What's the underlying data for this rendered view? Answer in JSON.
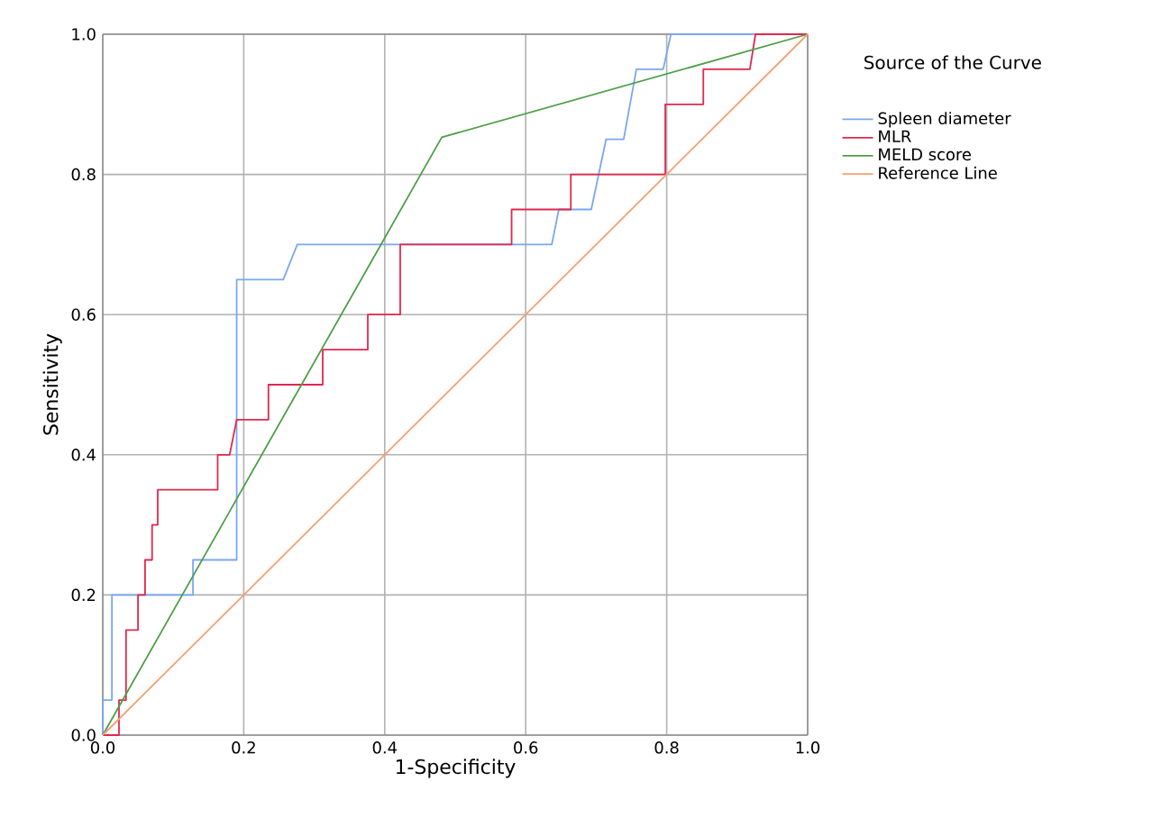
{
  "chart_data": {
    "type": "line",
    "xlabel": "1-Specificity",
    "ylabel": "Sensitivity",
    "legend_title": "Source of the Curve",
    "xlim": [
      0,
      1
    ],
    "ylim": [
      0,
      1
    ],
    "xticks": [
      {
        "value": 0,
        "label": "0.0"
      },
      {
        "value": 0.2,
        "label": "0.2"
      },
      {
        "value": 0.4,
        "label": "0.4"
      },
      {
        "value": 0.6,
        "label": "0.6"
      },
      {
        "value": 0.8,
        "label": "0.8"
      },
      {
        "value": 1,
        "label": "1.0"
      }
    ],
    "yticks": [
      {
        "value": 0,
        "label": "0.0"
      },
      {
        "value": 0.2,
        "label": "0.2"
      },
      {
        "value": 0.4,
        "label": "0.4"
      },
      {
        "value": 0.6,
        "label": "0.6"
      },
      {
        "value": 0.8,
        "label": "0.8"
      },
      {
        "value": 1,
        "label": "1.0"
      }
    ],
    "grid": true,
    "legend": "top right",
    "marker": "none",
    "series": [
      {
        "name": "Spleen diameter",
        "color": "#7aa7ee",
        "x": [
          0,
          0,
          0.013,
          0.013,
          0.128,
          0.128,
          0.19,
          0.19,
          0.256,
          0.276,
          0.637,
          0.647,
          0.693,
          0.714,
          0.739,
          0.757,
          0.795,
          0.806,
          1
        ],
        "values": [
          0,
          0.05,
          0.05,
          0.2,
          0.2,
          0.25,
          0.25,
          0.65,
          0.65,
          0.7,
          0.7,
          0.75,
          0.75,
          0.85,
          0.85,
          0.95,
          0.95,
          1,
          1
        ]
      },
      {
        "name": "MLR",
        "color": "#e0284e",
        "x": [
          0,
          0.023,
          0.023,
          0.033,
          0.033,
          0.05,
          0.05,
          0.06,
          0.06,
          0.07,
          0.07,
          0.078,
          0.078,
          0.163,
          0.163,
          0.18,
          0.19,
          0.235,
          0.235,
          0.312,
          0.312,
          0.376,
          0.376,
          0.422,
          0.422,
          0.58,
          0.58,
          0.664,
          0.664,
          0.798,
          0.798,
          0.852,
          0.852,
          0.918,
          0.926,
          1
        ],
        "values": [
          0,
          0,
          0.05,
          0.05,
          0.15,
          0.15,
          0.2,
          0.2,
          0.25,
          0.25,
          0.3,
          0.3,
          0.35,
          0.35,
          0.4,
          0.4,
          0.45,
          0.45,
          0.5,
          0.5,
          0.55,
          0.55,
          0.6,
          0.6,
          0.7,
          0.7,
          0.75,
          0.75,
          0.8,
          0.8,
          0.9,
          0.9,
          0.95,
          0.95,
          1,
          1
        ]
      },
      {
        "name": "MELD score",
        "color": "#4e9e47",
        "x": [
          0,
          0.481,
          1
        ],
        "values": [
          0,
          0.853,
          1
        ]
      },
      {
        "name": "Reference Line",
        "color": "#f5a070",
        "x": [
          0,
          1
        ],
        "values": [
          0,
          1
        ]
      }
    ]
  }
}
